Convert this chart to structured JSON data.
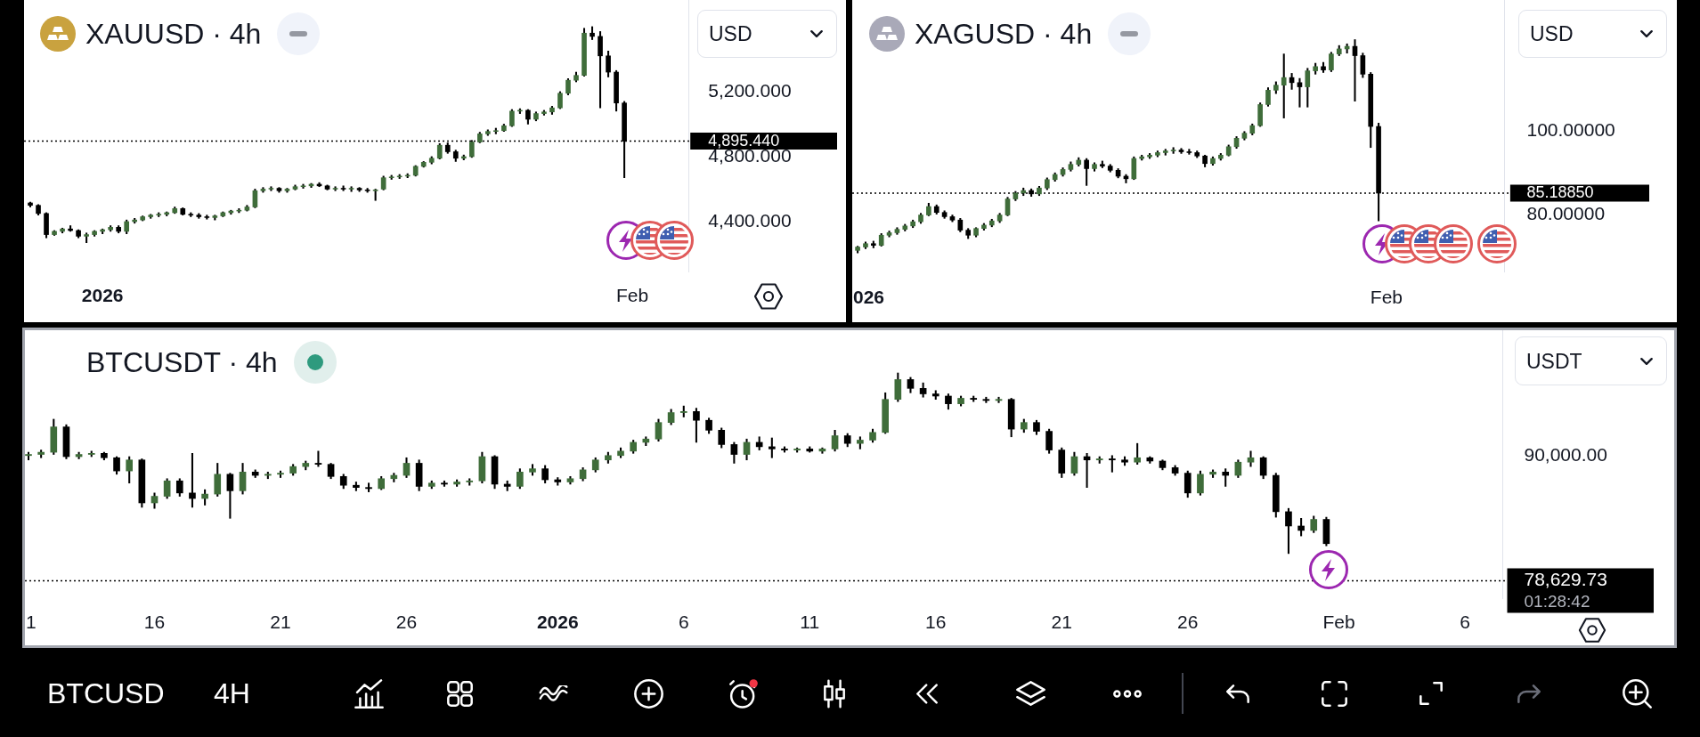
{
  "chart_data": [
    {
      "type": "candlestick",
      "title": "XAUUSD · 4h",
      "categories": [
        null,
        null,
        null,
        null,
        null,
        null,
        null,
        null,
        null,
        "2026",
        null,
        null,
        null,
        null,
        null,
        null,
        null,
        null,
        null,
        null,
        null,
        null,
        null,
        null,
        null,
        null,
        null,
        null,
        null,
        null,
        null,
        null,
        null,
        null,
        null,
        null,
        null,
        null,
        null,
        null,
        null,
        null,
        null,
        null,
        null,
        null,
        null,
        null,
        null,
        null,
        null,
        null,
        null,
        null,
        null,
        null,
        null,
        null,
        null,
        null,
        null,
        null,
        null,
        null,
        null,
        null,
        null,
        null,
        null,
        null,
        null,
        null,
        null,
        null,
        null,
        "Feb",
        null,
        null,
        null,
        null,
        null,
        null,
        null
      ],
      "ohlc": [
        [
          4515,
          4520,
          4490,
          4500
        ],
        [
          4500,
          4505,
          4440,
          4450
        ],
        [
          4450,
          4455,
          4300,
          4320
        ],
        [
          4320,
          4345,
          4315,
          4340
        ],
        [
          4340,
          4360,
          4330,
          4355
        ],
        [
          4355,
          4375,
          4340,
          4345
        ],
        [
          4345,
          4350,
          4300,
          4310
        ],
        [
          4310,
          4330,
          4270,
          4320
        ],
        [
          4320,
          4345,
          4310,
          4340
        ],
        [
          4340,
          4355,
          4325,
          4350
        ],
        [
          4350,
          4375,
          4340,
          4365
        ],
        [
          4365,
          4375,
          4330,
          4340
        ],
        [
          4340,
          4410,
          4325,
          4400
        ],
        [
          4400,
          4420,
          4390,
          4410
        ],
        [
          4410,
          4435,
          4405,
          4430
        ],
        [
          4430,
          4445,
          4420,
          4440
        ],
        [
          4440,
          4455,
          4430,
          4445
        ],
        [
          4445,
          4460,
          4435,
          4455
        ],
        [
          4455,
          4490,
          4450,
          4480
        ],
        [
          4480,
          4485,
          4440,
          4445
        ],
        [
          4445,
          4455,
          4430,
          4440
        ],
        [
          4440,
          4450,
          4420,
          4430
        ],
        [
          4430,
          4440,
          4415,
          4425
        ],
        [
          4425,
          4440,
          4410,
          4435
        ],
        [
          4435,
          4460,
          4430,
          4455
        ],
        [
          4455,
          4470,
          4445,
          4465
        ],
        [
          4465,
          4480,
          4455,
          4470
        ],
        [
          4470,
          4500,
          4465,
          4490
        ],
        [
          4490,
          4600,
          4485,
          4590
        ],
        [
          4590,
          4610,
          4580,
          4600
        ],
        [
          4600,
          4615,
          4590,
          4605
        ],
        [
          4605,
          4610,
          4580,
          4590
        ],
        [
          4590,
          4605,
          4580,
          4600
        ],
        [
          4600,
          4625,
          4595,
          4615
        ],
        [
          4615,
          4630,
          4605,
          4620
        ],
        [
          4620,
          4635,
          4610,
          4630
        ],
        [
          4630,
          4640,
          4615,
          4620
        ],
        [
          4620,
          4625,
          4595,
          4600
        ],
        [
          4600,
          4615,
          4590,
          4605
        ],
        [
          4605,
          4620,
          4590,
          4600
        ],
        [
          4600,
          4615,
          4585,
          4605
        ],
        [
          4605,
          4610,
          4585,
          4595
        ],
        [
          4595,
          4605,
          4580,
          4590
        ],
        [
          4590,
          4600,
          4530,
          4595
        ],
        [
          4600,
          4680,
          4595,
          4670
        ],
        [
          4670,
          4685,
          4660,
          4675
        ],
        [
          4675,
          4690,
          4665,
          4680
        ],
        [
          4680,
          4695,
          4670,
          4685
        ],
        [
          4685,
          4745,
          4680,
          4740
        ],
        [
          4740,
          4770,
          4735,
          4765
        ],
        [
          4765,
          4800,
          4755,
          4790
        ],
        [
          4790,
          4880,
          4785,
          4870
        ],
        [
          4870,
          4885,
          4820,
          4830
        ],
        [
          4830,
          4840,
          4770,
          4790
        ],
        [
          4790,
          4810,
          4780,
          4800
        ],
        [
          4800,
          4900,
          4795,
          4890
        ],
        [
          4890,
          4950,
          4885,
          4940
        ],
        [
          4940,
          4965,
          4930,
          4955
        ],
        [
          4955,
          4975,
          4940,
          4960
        ],
        [
          4960,
          5000,
          4955,
          4990
        ],
        [
          4990,
          5090,
          4985,
          5080
        ],
        [
          5080,
          5095,
          5065,
          5085
        ],
        [
          5085,
          5090,
          5000,
          5030
        ],
        [
          5030,
          5075,
          5020,
          5065
        ],
        [
          5065,
          5085,
          5055,
          5075
        ],
        [
          5075,
          5110,
          5060,
          5100
        ],
        [
          5100,
          5200,
          5095,
          5190
        ],
        [
          5190,
          5280,
          5180,
          5270
        ],
        [
          5270,
          5320,
          5260,
          5300
        ],
        [
          5300,
          5590,
          5295,
          5560
        ],
        [
          5560,
          5600,
          5520,
          5540
        ],
        [
          5540,
          5570,
          5100,
          5420
        ],
        [
          5420,
          5450,
          5290,
          5320
        ],
        [
          5320,
          5330,
          5080,
          5130
        ],
        [
          5130,
          5140,
          4670,
          4895.44
        ],
        null,
        null,
        null,
        null,
        null,
        null,
        null,
        null
      ],
      "ylim": [
        4093,
        5764
      ],
      "yticks": [
        {
          "value": 4400,
          "label": "4,400.000"
        },
        {
          "value": 4800,
          "label": "4,800.000"
        },
        {
          "value": 5200,
          "label": "5,200.000"
        }
      ],
      "ref_lines": [
        {
          "axis": "y",
          "value": 4895.44,
          "label": "4,895.440",
          "color": "#000000",
          "line_style": "dotted"
        }
      ],
      "annotations": [
        "USD"
      ]
    },
    {
      "type": "candlestick",
      "title": "XAGUSD · 4h",
      "categories": [
        null,
        "026",
        null,
        null,
        null,
        null,
        null,
        null,
        null,
        null,
        null,
        null,
        null,
        null,
        null,
        null,
        null,
        null,
        null,
        null,
        null,
        null,
        null,
        null,
        null,
        null,
        null,
        null,
        null,
        null,
        null,
        null,
        null,
        null,
        null,
        null,
        null,
        null,
        null,
        null,
        null,
        null,
        null,
        null,
        null,
        null,
        null,
        null,
        null,
        null,
        null,
        null,
        null,
        null,
        null,
        null,
        null,
        null,
        null,
        null,
        null,
        null,
        null,
        null,
        null,
        null,
        null,
        "Feb",
        null,
        null,
        null,
        null,
        null,
        null,
        null,
        null,
        null,
        null,
        null,
        null,
        null,
        null,
        null
      ],
      "ohlc": [
        [
          71.6,
          72.6,
          71.0,
          72.4
        ],
        [
          72.4,
          73.6,
          72.0,
          73.2
        ],
        [
          73.2,
          73.8,
          72.2,
          72.8
        ],
        [
          72.8,
          75.6,
          72.6,
          75.2
        ],
        [
          75.2,
          76.2,
          74.8,
          75.8
        ],
        [
          75.8,
          77.0,
          75.4,
          76.6
        ],
        [
          76.6,
          77.8,
          76.2,
          77.4
        ],
        [
          77.4,
          78.8,
          77.0,
          78.4
        ],
        [
          78.4,
          80.4,
          78.0,
          80.0
        ],
        [
          80.0,
          82.8,
          79.8,
          82.0
        ],
        [
          82.0,
          82.4,
          80.2,
          80.6
        ],
        [
          80.6,
          81.0,
          79.2,
          79.6
        ],
        [
          79.6,
          80.0,
          78.4,
          78.8
        ],
        [
          78.8,
          79.2,
          76.0,
          76.4
        ],
        [
          76.4,
          76.8,
          74.4,
          75.2
        ],
        [
          75.2,
          77.0,
          74.8,
          76.8
        ],
        [
          76.8,
          78.0,
          76.4,
          77.6
        ],
        [
          77.6,
          79.0,
          77.2,
          78.6
        ],
        [
          78.6,
          80.4,
          78.2,
          80.0
        ],
        [
          80.0,
          84.2,
          79.8,
          83.8
        ],
        [
          83.8,
          85.6,
          83.4,
          85.2
        ],
        [
          85.2,
          86.4,
          84.6,
          85.8
        ],
        [
          85.8,
          86.2,
          84.4,
          85.0
        ],
        [
          85.0,
          86.8,
          84.6,
          86.4
        ],
        [
          86.4,
          88.8,
          86.0,
          88.4
        ],
        [
          88.4,
          90.0,
          88.0,
          89.6
        ],
        [
          89.6,
          91.2,
          89.2,
          90.8
        ],
        [
          90.8,
          92.6,
          90.4,
          92.0
        ],
        [
          92.0,
          93.6,
          91.6,
          93.0
        ],
        [
          93.0,
          93.4,
          87.0,
          91.0
        ],
        [
          91.0,
          92.4,
          90.4,
          92.0
        ],
        [
          92.0,
          92.8,
          91.2,
          91.6
        ],
        [
          91.6,
          92.0,
          90.2,
          90.6
        ],
        [
          90.6,
          91.0,
          88.8,
          89.2
        ],
        [
          89.2,
          89.6,
          87.6,
          88.6
        ],
        [
          88.6,
          93.8,
          88.4,
          93.4
        ],
        [
          93.4,
          94.2,
          93.0,
          93.8
        ],
        [
          93.8,
          94.6,
          93.4,
          94.2
        ],
        [
          94.2,
          95.2,
          93.8,
          94.8
        ],
        [
          94.8,
          95.6,
          94.2,
          95.2
        ],
        [
          95.2,
          96.0,
          94.6,
          95.4
        ],
        [
          95.4,
          95.8,
          94.6,
          95.0
        ],
        [
          95.0,
          95.6,
          94.4,
          94.8
        ],
        [
          94.8,
          95.2,
          93.6,
          94.0
        ],
        [
          94.0,
          94.2,
          91.4,
          92.2
        ],
        [
          92.2,
          93.8,
          91.8,
          93.4
        ],
        [
          93.4,
          94.6,
          93.0,
          94.2
        ],
        [
          94.2,
          96.6,
          94.0,
          96.2
        ],
        [
          96.2,
          98.6,
          95.8,
          98.2
        ],
        [
          98.2,
          99.8,
          97.8,
          99.4
        ],
        [
          99.4,
          101.6,
          99.0,
          101.2
        ],
        [
          101.2,
          106.6,
          101.0,
          106.2
        ],
        [
          106.2,
          110.2,
          105.8,
          109.6
        ],
        [
          109.6,
          111.6,
          108.8,
          110.8
        ],
        [
          110.8,
          118.2,
          103.0,
          112.6
        ],
        [
          112.6,
          113.6,
          109.8,
          111.4
        ],
        [
          111.4,
          112.4,
          105.6,
          110.4
        ],
        [
          110.4,
          114.8,
          105.6,
          114.2
        ],
        [
          114.2,
          116.0,
          113.4,
          115.2
        ],
        [
          115.2,
          116.2,
          113.8,
          114.4
        ],
        [
          114.4,
          118.6,
          114.0,
          118.2
        ],
        [
          118.2,
          120.2,
          117.8,
          119.4
        ],
        [
          119.4,
          120.6,
          118.4,
          120.0
        ],
        [
          120.0,
          121.6,
          107.0,
          117.8
        ],
        [
          117.8,
          118.4,
          112.6,
          113.4
        ],
        [
          113.4,
          113.8,
          96.0,
          101.0
        ],
        [
          101.0,
          101.8,
          78.6,
          85.1885
        ],
        null,
        null,
        null,
        null,
        null,
        null,
        null,
        null,
        null,
        null,
        null,
        null,
        null,
        null,
        null,
        null
      ],
      "ylim": [
        66.6,
        131
      ],
      "yticks": [
        {
          "value": 80,
          "label": "80.00000"
        },
        {
          "value": 100,
          "label": "100.00000"
        }
      ],
      "ref_lines": [
        {
          "axis": "y",
          "value": 85.1885,
          "label": "85.18850",
          "color": "#000000",
          "line_style": "dotted"
        }
      ],
      "annotations": [
        "USD"
      ]
    },
    {
      "type": "candlestick",
      "title": "BTCUSDT · 4h",
      "categories": [
        "1",
        null,
        null,
        null,
        null,
        null,
        null,
        null,
        null,
        null,
        "16",
        null,
        null,
        null,
        null,
        null,
        null,
        null,
        null,
        null,
        "21",
        null,
        null,
        null,
        null,
        null,
        null,
        null,
        null,
        null,
        "26",
        null,
        null,
        null,
        null,
        null,
        null,
        null,
        null,
        null,
        null,
        null,
        "2026",
        null,
        null,
        null,
        null,
        null,
        null,
        null,
        null,
        null,
        "6",
        null,
        null,
        null,
        null,
        null,
        null,
        null,
        null,
        null,
        "11",
        null,
        null,
        null,
        null,
        null,
        null,
        null,
        null,
        null,
        "16",
        null,
        null,
        null,
        null,
        null,
        null,
        null,
        null,
        null,
        "21",
        null,
        null,
        null,
        null,
        null,
        null,
        null,
        null,
        null,
        "26",
        null,
        null,
        null,
        null,
        null,
        null,
        null,
        null,
        null,
        null,
        null,
        "Feb",
        null,
        null,
        null,
        null,
        null,
        null,
        null,
        null,
        null,
        "6",
        null,
        null,
        null
      ],
      "ohlc": [
        [
          90000,
          90300,
          89600,
          90100
        ],
        [
          90100,
          90500,
          89800,
          90300
        ],
        [
          90300,
          93300,
          90100,
          92600
        ],
        [
          92600,
          92800,
          89700,
          89900
        ],
        [
          89900,
          90300,
          89700,
          90100
        ],
        [
          90100,
          90400,
          89900,
          90200
        ],
        [
          90200,
          90300,
          89600,
          89800
        ],
        [
          89800,
          89900,
          88300,
          88600
        ],
        [
          88600,
          89900,
          87500,
          89600
        ],
        [
          89600,
          89700,
          85300,
          85700
        ],
        [
          85700,
          86600,
          85200,
          86300
        ],
        [
          86300,
          87900,
          86100,
          87700
        ],
        [
          87700,
          87900,
          86300,
          86600
        ],
        [
          86600,
          90200,
          85300,
          86100
        ],
        [
          86100,
          86900,
          85500,
          86500
        ],
        [
          86500,
          89300,
          86300,
          88300
        ],
        [
          88300,
          88400,
          84300,
          86800
        ],
        [
          86800,
          89300,
          86500,
          88500
        ],
        [
          88500,
          88700,
          88000,
          88200
        ],
        [
          88200,
          88500,
          87900,
          88300
        ],
        [
          88300,
          88600,
          88000,
          88400
        ],
        [
          88400,
          89200,
          88200,
          89000
        ],
        [
          89000,
          89500,
          88700,
          89300
        ],
        [
          89300,
          90400,
          89000,
          89200
        ],
        [
          89200,
          89300,
          87900,
          88100
        ],
        [
          88100,
          88300,
          87000,
          87300
        ],
        [
          87300,
          87600,
          86800,
          87100
        ],
        [
          87100,
          87500,
          86700,
          87000
        ],
        [
          87000,
          88100,
          86900,
          87900
        ],
        [
          87900,
          88400,
          87600,
          88200
        ],
        [
          88200,
          89800,
          88000,
          89300
        ],
        [
          89300,
          89600,
          86800,
          87200
        ],
        [
          87200,
          87700,
          87000,
          87500
        ],
        [
          87500,
          87700,
          87200,
          87400
        ],
        [
          87400,
          87800,
          87200,
          87600
        ],
        [
          87600,
          87900,
          87300,
          87700
        ],
        [
          87700,
          90300,
          87500,
          89900
        ],
        [
          89900,
          90000,
          87000,
          87400
        ],
        [
          87400,
          87700,
          86800,
          87200
        ],
        [
          87200,
          88800,
          87000,
          88500
        ],
        [
          88500,
          89200,
          88200,
          88800
        ],
        [
          88800,
          89100,
          87500,
          87800
        ],
        [
          87800,
          88000,
          87300,
          87600
        ],
        [
          87600,
          88100,
          87400,
          87900
        ],
        [
          87900,
          88900,
          87700,
          88700
        ],
        [
          88700,
          89800,
          88500,
          89600
        ],
        [
          89600,
          90300,
          89300,
          90000
        ],
        [
          90000,
          90700,
          89800,
          90400
        ],
        [
          90400,
          91400,
          90200,
          91200
        ],
        [
          91200,
          91700,
          90900,
          91500
        ],
        [
          91500,
          93300,
          91300,
          93000
        ],
        [
          93000,
          94200,
          92800,
          93900
        ],
        [
          93900,
          94500,
          93500,
          94000
        ],
        [
          94000,
          94300,
          91200,
          93200
        ],
        [
          93200,
          93400,
          92000,
          92300
        ],
        [
          92300,
          92500,
          90700,
          91000
        ],
        [
          91000,
          91200,
          89300,
          90100
        ],
        [
          90100,
          91500,
          89600,
          91200
        ],
        [
          91200,
          91700,
          90500,
          90800
        ],
        [
          90800,
          91600,
          89800,
          90600
        ],
        [
          90600,
          90800,
          90300,
          90500
        ],
        [
          90500,
          90700,
          90300,
          90600
        ],
        [
          90600,
          90800,
          90300,
          90400
        ],
        [
          90400,
          90700,
          90200,
          90600
        ],
        [
          90600,
          92300,
          90400,
          91800
        ],
        [
          91800,
          92000,
          90800,
          91100
        ],
        [
          91100,
          91700,
          90600,
          91400
        ],
        [
          91400,
          92400,
          91200,
          92100
        ],
        [
          92100,
          95700,
          92000,
          95100
        ],
        [
          95100,
          97500,
          94900,
          96900
        ],
        [
          96900,
          97100,
          95700,
          96100
        ],
        [
          96100,
          96600,
          95300,
          95600
        ],
        [
          95600,
          95900,
          95100,
          95400
        ],
        [
          95400,
          95600,
          94200,
          94700
        ],
        [
          94700,
          95400,
          94500,
          95200
        ],
        [
          95200,
          95400,
          94900,
          95100
        ],
        [
          95100,
          95300,
          94800,
          95000
        ],
        [
          95000,
          95300,
          94800,
          95100
        ],
        [
          95100,
          95200,
          91700,
          92400
        ],
        [
          92400,
          93300,
          92100,
          93000
        ],
        [
          93000,
          93200,
          91900,
          92200
        ],
        [
          92200,
          92400,
          90200,
          90500
        ],
        [
          90500,
          90700,
          88000,
          88400
        ],
        [
          88400,
          90300,
          88200,
          89900
        ],
        [
          89900,
          90200,
          87100,
          89600
        ],
        [
          89600,
          89900,
          89300,
          89700
        ],
        [
          89700,
          90000,
          88500,
          89600
        ],
        [
          89600,
          89900,
          89100,
          89400
        ],
        [
          89400,
          91100,
          89200,
          89800
        ],
        [
          89800,
          89900,
          89300,
          89500
        ],
        [
          89500,
          89600,
          88700,
          88900
        ],
        [
          88900,
          89100,
          88200,
          88400
        ],
        [
          88400,
          88600,
          86200,
          86600
        ],
        [
          86600,
          88600,
          86400,
          88300
        ],
        [
          88300,
          88700,
          88000,
          88500
        ],
        [
          88500,
          88800,
          87200,
          88200
        ],
        [
          88200,
          89600,
          88000,
          89400
        ],
        [
          89400,
          90400,
          89000,
          89800
        ],
        [
          89800,
          89900,
          87900,
          88200
        ],
        [
          88200,
          88400,
          84400,
          84900
        ],
        [
          84900,
          85200,
          81100,
          83600
        ],
        [
          83600,
          84300,
          82700,
          83200
        ],
        [
          83200,
          84500,
          83000,
          84200
        ],
        [
          84200,
          84400,
          81800,
          82000
        ],
        null,
        null,
        null,
        null,
        null,
        null,
        null,
        null,
        null,
        null,
        null,
        null,
        null,
        null
      ],
      "ylim": [
        77050,
        101380
      ],
      "yticks": [
        {
          "value": 78629.73,
          "label": "78,629.73"
        },
        {
          "value": 90000,
          "label": "90,000.00"
        }
      ],
      "ref_lines": [
        {
          "axis": "y",
          "value": 78629.73,
          "color": "#000000",
          "line_style": "dotted"
        }
      ],
      "annotations": [
        "USDT",
        "01:28:42",
        "BTCUSD",
        "4H"
      ]
    }
  ]
}
